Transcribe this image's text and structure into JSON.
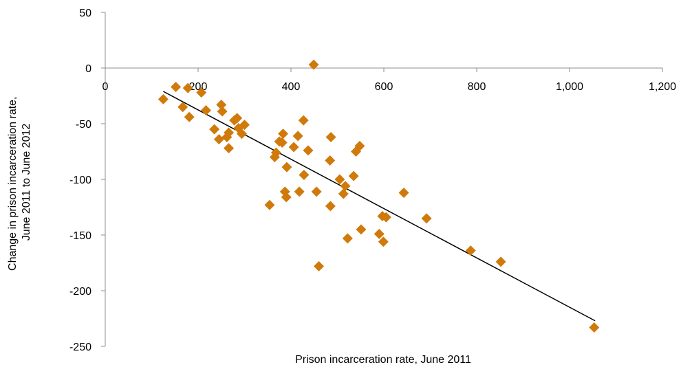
{
  "chart_data": {
    "type": "scatter",
    "title": "",
    "xlabel": "Prison incarceration rate, June 2011",
    "ylabel_lines": [
      "Change in prison incarceration rate,",
      "June 2011 to June 2012"
    ],
    "xlim": [
      0,
      1200
    ],
    "ylim": [
      -250,
      50
    ],
    "x_ticks": [
      0,
      200,
      400,
      600,
      800,
      1000,
      1200
    ],
    "x_tick_labels": [
      "0",
      "200",
      "400",
      "600",
      "800",
      "1,000",
      "1,200"
    ],
    "y_ticks": [
      50,
      0,
      -50,
      -100,
      -150,
      -200,
      -250
    ],
    "y_tick_labels": [
      "50",
      "0",
      "-50",
      "-100",
      "-150",
      "-200",
      "-250"
    ],
    "grid": false,
    "legend": "none",
    "marker": "diamond",
    "point_color": "#D07A0C",
    "trendline": {
      "type": "linear",
      "x": [
        125,
        1055
      ],
      "y": [
        -21,
        -227
      ],
      "color": "#000000"
    },
    "points": [
      {
        "x": 125,
        "y": -28
      },
      {
        "x": 152,
        "y": -17
      },
      {
        "x": 167,
        "y": -35
      },
      {
        "x": 178,
        "y": -18
      },
      {
        "x": 181,
        "y": -44
      },
      {
        "x": 207,
        "y": -22
      },
      {
        "x": 217,
        "y": -38
      },
      {
        "x": 235,
        "y": -55
      },
      {
        "x": 245,
        "y": -64
      },
      {
        "x": 250,
        "y": -33
      },
      {
        "x": 252,
        "y": -39
      },
      {
        "x": 262,
        "y": -62
      },
      {
        "x": 266,
        "y": -58
      },
      {
        "x": 266,
        "y": -72
      },
      {
        "x": 278,
        "y": -47
      },
      {
        "x": 284,
        "y": -45
      },
      {
        "x": 287,
        "y": -54
      },
      {
        "x": 294,
        "y": -59
      },
      {
        "x": 300,
        "y": -51
      },
      {
        "x": 354,
        "y": -123
      },
      {
        "x": 365,
        "y": -80
      },
      {
        "x": 368,
        "y": -76
      },
      {
        "x": 375,
        "y": -66
      },
      {
        "x": 381,
        "y": -67
      },
      {
        "x": 383,
        "y": -59
      },
      {
        "x": 387,
        "y": -111
      },
      {
        "x": 390,
        "y": -116
      },
      {
        "x": 391,
        "y": -89
      },
      {
        "x": 406,
        "y": -71
      },
      {
        "x": 415,
        "y": -61
      },
      {
        "x": 418,
        "y": -111
      },
      {
        "x": 427,
        "y": -47
      },
      {
        "x": 428,
        "y": -96
      },
      {
        "x": 437,
        "y": -74
      },
      {
        "x": 449,
        "y": 3
      },
      {
        "x": 455,
        "y": -111
      },
      {
        "x": 460,
        "y": -178
      },
      {
        "x": 484,
        "y": -83
      },
      {
        "x": 485,
        "y": -124
      },
      {
        "x": 486,
        "y": -62
      },
      {
        "x": 505,
        "y": -100
      },
      {
        "x": 513,
        "y": -113
      },
      {
        "x": 517,
        "y": -106
      },
      {
        "x": 522,
        "y": -153
      },
      {
        "x": 535,
        "y": -97
      },
      {
        "x": 540,
        "y": -75
      },
      {
        "x": 548,
        "y": -70
      },
      {
        "x": 551,
        "y": -145
      },
      {
        "x": 590,
        "y": -149
      },
      {
        "x": 597,
        "y": -133
      },
      {
        "x": 599,
        "y": -156
      },
      {
        "x": 605,
        "y": -134
      },
      {
        "x": 643,
        "y": -112
      },
      {
        "x": 692,
        "y": -135
      },
      {
        "x": 787,
        "y": -164
      },
      {
        "x": 852,
        "y": -174
      },
      {
        "x": 1053,
        "y": -233
      }
    ]
  }
}
